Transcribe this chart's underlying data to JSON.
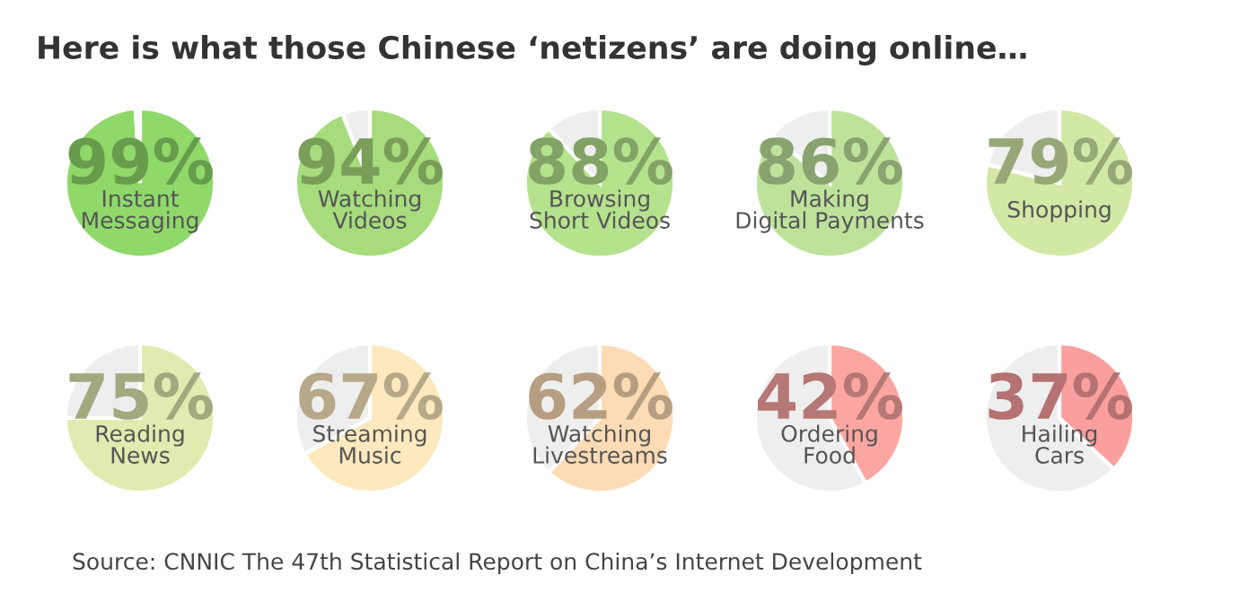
{
  "chart_data": [
    {
      "type": "pie",
      "title": "Here is what those Chinese ‘netizens’ are doing online…",
      "categories": [
        "Instant Messaging",
        null
      ],
      "values": [
        99,
        1
      ],
      "colors": [
        "#8fd86a",
        "#eeeeee"
      ],
      "value_labels": [
        "99%",
        null
      ]
    },
    {
      "type": "pie",
      "categories": [
        "Watching Videos",
        null
      ],
      "values": [
        94,
        6
      ],
      "colors": [
        "#a6dc7c",
        "#eeeeee"
      ],
      "value_labels": [
        "94%",
        null
      ]
    },
    {
      "type": "pie",
      "categories": [
        "Browsing Short Videos",
        null
      ],
      "values": [
        88,
        12
      ],
      "colors": [
        "#b5e28d",
        "#eeeeee"
      ],
      "value_labels": [
        "88%",
        null
      ]
    },
    {
      "type": "pie",
      "categories": [
        "Making Digital Payments",
        null
      ],
      "values": [
        86,
        14
      ],
      "colors": [
        "#bde39b",
        "#eeeeee"
      ],
      "value_labels": [
        "86%",
        null
      ]
    },
    {
      "type": "pie",
      "categories": [
        "Shopping",
        null
      ],
      "values": [
        79,
        21
      ],
      "colors": [
        "#d2e9a6",
        "#eeeeee"
      ],
      "value_labels": [
        "79%",
        null
      ]
    },
    {
      "type": "pie",
      "categories": [
        "Reading News",
        null
      ],
      "values": [
        75,
        25
      ],
      "colors": [
        "#e0ebb0",
        "#eeeeee"
      ],
      "value_labels": [
        "75%",
        null
      ]
    },
    {
      "type": "pie",
      "categories": [
        "Streaming Music",
        null
      ],
      "values": [
        67,
        33
      ],
      "colors": [
        "#fde9bd",
        "#eeeeee"
      ],
      "value_labels": [
        "67%",
        null
      ]
    },
    {
      "type": "pie",
      "categories": [
        "Watching Livestreams",
        null
      ],
      "values": [
        62,
        38
      ],
      "colors": [
        "#fddbb4",
        "#eeeeee"
      ],
      "value_labels": [
        "62%",
        null
      ]
    },
    {
      "type": "pie",
      "categories": [
        "Ordering Food",
        null
      ],
      "values": [
        42,
        58
      ],
      "colors": [
        "#fca6a2",
        "#eeeeee"
      ],
      "value_labels": [
        "42%",
        null
      ]
    },
    {
      "type": "pie",
      "categories": [
        "Hailing Cars",
        null
      ],
      "values": [
        37,
        63
      ],
      "colors": [
        "#fb9e9e",
        "#eeeeee"
      ],
      "value_labels": [
        "37%",
        null
      ],
      "annotations": [
        "Source: CNNIC The 47th Statistical Report on China’s Internet Development"
      ]
    }
  ]
}
